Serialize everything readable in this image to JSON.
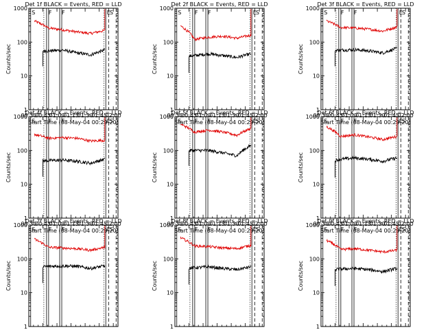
{
  "chart_data": {
    "type": "line",
    "panel_count": 9,
    "title_suffix": "BLACK = Events, RED = LLD",
    "detectors": [
      "Det 1f",
      "Det 2f",
      "Det 3f",
      "Det 4f",
      "Det 5f",
      "Det 6f",
      "Det 7f",
      "Det 8f",
      "Det 9f"
    ],
    "ylabel": "Counts/sec",
    "xlabel": "Start Time (08-May-04 00:29:20)",
    "xlim_min": [
      30,
      125
    ],
    "ylim": [
      1,
      1000
    ],
    "yscale": "log",
    "x_ticks": [
      30,
      45,
      60,
      75,
      90,
      105,
      120
    ],
    "x_tick_labels": [
      "00:30",
      "00:45",
      "01:00",
      "01:15",
      "01:30",
      "01:45",
      "02:00"
    ],
    "y_ticks": [
      1,
      10,
      100,
      1000
    ],
    "y_tick_labels": [
      "1",
      "10",
      "100",
      "1000"
    ],
    "series_colors": {
      "events": "#000000",
      "lld": "#e00000"
    },
    "markers": [
      {
        "label": "S",
        "x": 32,
        "style": "solid"
      },
      {
        "label": "",
        "x": 46,
        "style": "dotted"
      },
      {
        "label": "F",
        "x": 50,
        "style": "double"
      },
      {
        "label": "F",
        "x": 64,
        "style": "double"
      },
      {
        "label": "",
        "x": 110,
        "style": "dotted"
      },
      {
        "label": "E",
        "x": 112,
        "style": "solid"
      },
      {
        "label": "S",
        "x": 115,
        "style": "dashed"
      },
      {
        "label": "",
        "x": 123,
        "style": "dashed"
      }
    ],
    "panels": [
      {
        "lld_levels": [
          420,
          260,
          230,
          200,
          180,
          220
        ],
        "events_levels": [
          55,
          55,
          58,
          48,
          42,
          58
        ]
      },
      {
        "lld_levels": [
          300,
          120,
          140,
          150,
          130,
          160
        ],
        "events_levels": [
          35,
          40,
          45,
          40,
          35,
          45
        ]
      },
      {
        "lld_levels": [
          420,
          270,
          260,
          240,
          210,
          280
        ],
        "events_levels": [
          55,
          58,
          60,
          55,
          48,
          65
        ]
      },
      {
        "lld_levels": [
          300,
          230,
          240,
          230,
          190,
          200
        ],
        "events_levels": [
          48,
          50,
          52,
          48,
          42,
          55
        ]
      },
      {
        "lld_levels": [
          600,
          350,
          400,
          350,
          280,
          450
        ],
        "events_levels": [
          100,
          100,
          100,
          85,
          70,
          140
        ]
      },
      {
        "lld_levels": [
          500,
          260,
          290,
          250,
          210,
          260
        ],
        "events_levels": [
          45,
          55,
          60,
          55,
          48,
          60
        ]
      },
      {
        "lld_levels": [
          380,
          220,
          210,
          200,
          180,
          220
        ],
        "events_levels": [
          55,
          60,
          62,
          60,
          52,
          62
        ]
      },
      {
        "lld_levels": [
          420,
          240,
          230,
          210,
          200,
          250
        ],
        "events_levels": [
          50,
          55,
          58,
          52,
          48,
          58
        ]
      },
      {
        "lld_levels": [
          350,
          190,
          200,
          180,
          160,
          180
        ],
        "events_levels": [
          45,
          50,
          52,
          48,
          42,
          52
        ]
      }
    ]
  }
}
